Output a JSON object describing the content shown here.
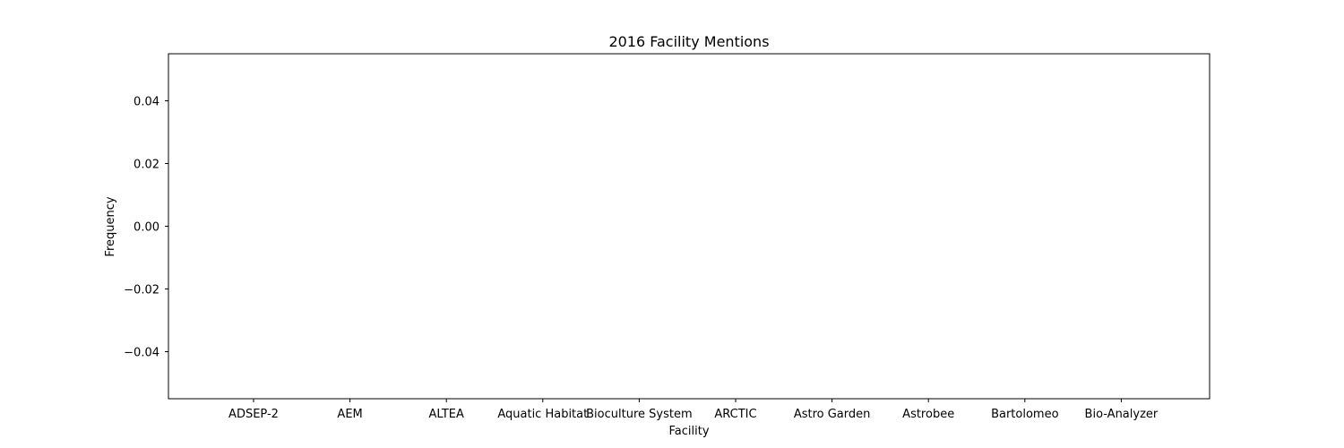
{
  "chart_data": {
    "type": "bar",
    "title": "2016 Facility Mentions",
    "xlabel": "Facility",
    "ylabel": "Frequency",
    "categories": [
      "ADSEP-2",
      "AEM",
      "ALTEA",
      "Aquatic Habitat",
      "Bioculture System",
      "ARCTIC",
      "Astro Garden",
      "Astrobee",
      "Bartolomeo",
      "Bio-Analyzer"
    ],
    "values": [
      0,
      0,
      0,
      0,
      0,
      0,
      0,
      0,
      0,
      0
    ],
    "ylim": [
      -0.055,
      0.055
    ],
    "yticks": [
      0.04,
      0.02,
      0.0,
      -0.02,
      -0.04
    ],
    "ytick_labels": [
      "0.04",
      "0.02",
      "0.00",
      "−0.02",
      "−0.04"
    ],
    "grid": false,
    "colors": {
      "bar": "#1f77b4",
      "axis": "#000000",
      "background": "#ffffff"
    }
  }
}
